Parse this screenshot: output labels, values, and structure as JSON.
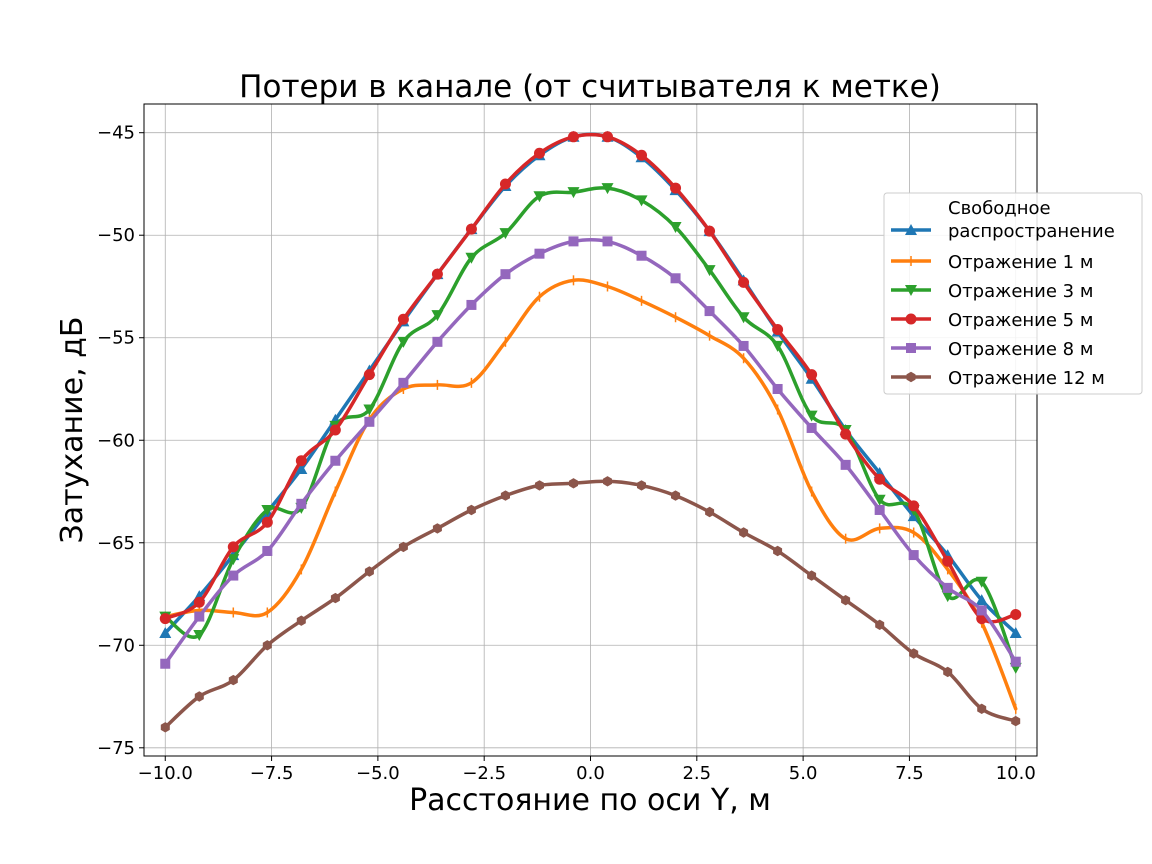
{
  "chart_data": {
    "type": "line",
    "title": "Потери в канале (от считывателя к метке)",
    "xlabel": "Расстояние по оси Y, м",
    "ylabel": "Затухание, дБ",
    "xlim": [
      -10.5,
      10.5
    ],
    "ylim": [
      -75.4,
      -43.6
    ],
    "xticks": [
      -10.0,
      -7.5,
      -5.0,
      -2.5,
      0.0,
      2.5,
      5.0,
      7.5,
      10.0
    ],
    "xtick_labels": [
      "−10.0",
      "−7.5",
      "−5.0",
      "−2.5",
      "0.0",
      "2.5",
      "5.0",
      "7.5",
      "10.0"
    ],
    "yticks": [
      -75,
      -70,
      -65,
      -60,
      -55,
      -50,
      -45
    ],
    "ytick_labels": [
      "−75",
      "−70",
      "−65",
      "−60",
      "−55",
      "−50",
      "−45"
    ],
    "grid": true,
    "legend_position": "right",
    "x": [
      -10.0,
      -9.2,
      -8.4,
      -7.6,
      -6.8,
      -6.0,
      -5.2,
      -4.4,
      -3.6,
      -2.8,
      -2.0,
      -1.2,
      -0.4,
      0.4,
      1.2,
      2.0,
      2.8,
      3.6,
      4.4,
      5.2,
      6.0,
      6.8,
      7.6,
      8.4,
      9.2,
      10.0
    ],
    "series": [
      {
        "name": "Свободное распространение",
        "legend_lines": [
          "Свободное",
          "распространение"
        ],
        "color": "#1f77b4",
        "marker": "triangle-up",
        "values": [
          -69.4,
          -67.6,
          -65.6,
          -63.5,
          -61.4,
          -59.0,
          -56.6,
          -54.2,
          -51.9,
          -49.7,
          -47.6,
          -46.1,
          -45.2,
          -45.2,
          -46.2,
          -47.8,
          -49.8,
          -52.2,
          -54.7,
          -57.0,
          -59.5,
          -61.6,
          -63.7,
          -65.6,
          -67.8,
          -69.4
        ]
      },
      {
        "name": "Отражение 1 м",
        "color": "#ff7f0e",
        "marker": "tick",
        "values": [
          -68.6,
          -68.3,
          -68.4,
          -68.4,
          -66.3,
          -62.5,
          -59.0,
          -57.5,
          -57.3,
          -57.2,
          -55.2,
          -53.0,
          -52.2,
          -52.5,
          -53.2,
          -54.0,
          -54.9,
          -56.0,
          -58.5,
          -62.5,
          -64.8,
          -64.3,
          -64.5,
          -66.3,
          -68.9,
          -73.1
        ]
      },
      {
        "name": "Отражение 3 м",
        "color": "#2ca02c",
        "marker": "triangle-down",
        "values": [
          -68.6,
          -69.5,
          -65.8,
          -63.4,
          -63.3,
          -59.3,
          -58.5,
          -55.2,
          -53.9,
          -51.1,
          -49.9,
          -48.1,
          -47.9,
          -47.7,
          -48.3,
          -49.6,
          -51.7,
          -54.0,
          -55.4,
          -58.8,
          -59.5,
          -62.9,
          -63.4,
          -67.6,
          -66.9,
          -71.1
        ]
      },
      {
        "name": "Отражение 5 м",
        "color": "#d62728",
        "marker": "circle",
        "values": [
          -68.7,
          -67.9,
          -65.2,
          -64.0,
          -61.0,
          -59.5,
          -56.8,
          -54.1,
          -51.9,
          -49.7,
          -47.5,
          -46.0,
          -45.2,
          -45.2,
          -46.1,
          -47.7,
          -49.8,
          -52.3,
          -54.6,
          -56.8,
          -59.7,
          -61.9,
          -63.2,
          -65.9,
          -68.7,
          -68.5
        ]
      },
      {
        "name": "Отражение 8 м",
        "color": "#9467bd",
        "marker": "square",
        "values": [
          -70.9,
          -68.6,
          -66.6,
          -65.4,
          -63.1,
          -61.0,
          -59.1,
          -57.2,
          -55.2,
          -53.4,
          -51.9,
          -50.9,
          -50.3,
          -50.3,
          -51.0,
          -52.1,
          -53.7,
          -55.4,
          -57.5,
          -59.4,
          -61.2,
          -63.4,
          -65.6,
          -67.2,
          -68.3,
          -70.8
        ]
      },
      {
        "name": "Отражение 12 м",
        "color": "#8c564b",
        "marker": "hexagon",
        "values": [
          -74.0,
          -72.5,
          -71.7,
          -70.0,
          -68.8,
          -67.7,
          -66.4,
          -65.2,
          -64.3,
          -63.4,
          -62.7,
          -62.2,
          -62.1,
          -62.0,
          -62.2,
          -62.7,
          -63.5,
          -64.5,
          -65.4,
          -66.6,
          -67.8,
          -69.0,
          -70.4,
          -71.3,
          -73.1,
          -73.7
        ]
      }
    ]
  }
}
